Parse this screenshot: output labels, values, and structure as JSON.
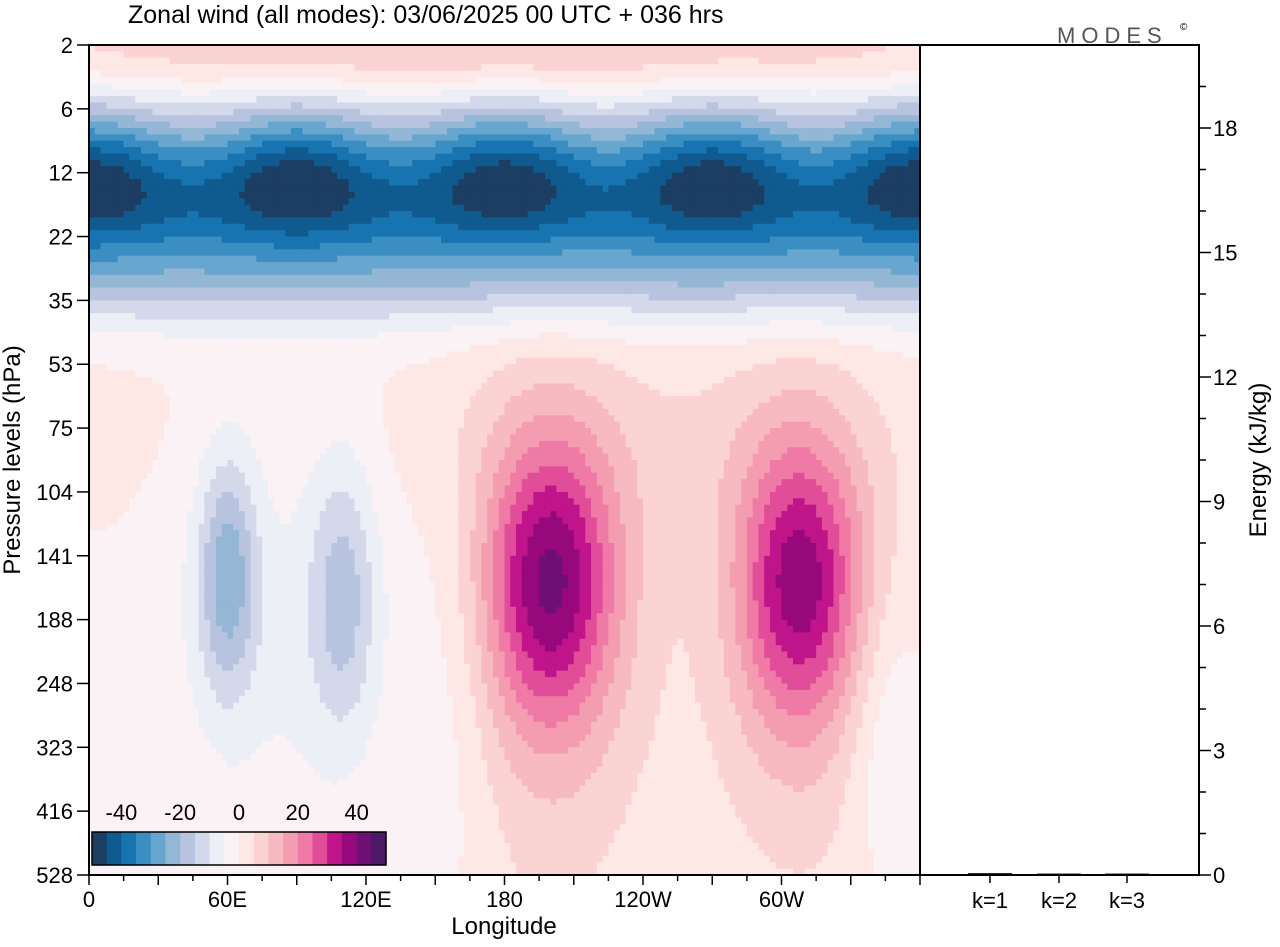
{
  "figure": {
    "title": "Zonal wind (all modes):  03/06/2025  00 UTC  + 036 hrs",
    "logo": "MODES",
    "logo_mark": "©"
  },
  "chart_data": [
    {
      "type": "heatmap",
      "name": "zonal-wind-cross-section",
      "xlabel": "Longitude",
      "ylabel": "Pressure levels (hPa)",
      "x_ticks": [
        "0",
        "60E",
        "120E",
        "180",
        "120W",
        "60W"
      ],
      "x_tick_degrees": [
        0,
        60,
        120,
        180,
        240,
        300
      ],
      "xlim": [
        0,
        360
      ],
      "y_ticks": [
        "2",
        "6",
        "12",
        "22",
        "35",
        "53",
        "75",
        "104",
        "141",
        "188",
        "248",
        "323",
        "416",
        "528"
      ],
      "y_scale": "level-index",
      "colorbar": {
        "tick_labels": [
          "-40",
          "-20",
          "0",
          "20",
          "40"
        ],
        "tick_values": [
          -40,
          -20,
          0,
          20,
          40
        ],
        "levels": [
          -45,
          -40,
          -35,
          -30,
          -25,
          -20,
          -15,
          -10,
          -5,
          0,
          5,
          10,
          15,
          20,
          25,
          30,
          35,
          40,
          45
        ],
        "colors": [
          "#1b3e62",
          "#0f5a8e",
          "#1874b1",
          "#3a8ec2",
          "#66a6cf",
          "#94b7d6",
          "#b7c3df",
          "#d3d9ea",
          "#eceff6",
          "#faf2f4",
          "#fde8e6",
          "#fbd3d3",
          "#f8bac1",
          "#f59db0",
          "#f07aa6",
          "#e14d98",
          "#c0148a",
          "#96087c",
          "#6e0f76",
          "#4c1a66"
        ],
        "placement": "bottom-left inset"
      },
      "features": [
        {
          "label": "stratospheric westward band",
          "lon_range": [
            0,
            360
          ],
          "level_range": [
            1,
            4
          ],
          "min_value": -38
        },
        {
          "label": "upper positive band",
          "lon_range": [
            20,
            320
          ],
          "level_range": [
            0,
            1
          ],
          "max_value": 12
        },
        {
          "label": "tropospheric westward lobes",
          "lon_range": [
            10,
            140
          ],
          "level_range": [
            6,
            12
          ],
          "min_value": -22
        },
        {
          "label": "positive jet core",
          "lon_center": 200,
          "level_center": 8.5,
          "max_value": 34
        },
        {
          "label": "positive jet core",
          "lon_center": 308,
          "level_center": 8.5,
          "max_value": 32
        },
        {
          "label": "weak westward lobe",
          "lon_center": 345,
          "level_center": 10.8,
          "min_value": -8
        }
      ]
    },
    {
      "type": "bar",
      "name": "energy-by-wavenumber",
      "ylabel": "Energy (kJ/kg)",
      "categories": [
        "k=1",
        "k=2",
        "k=3"
      ],
      "values": [
        0.02,
        0.01,
        0.01
      ],
      "ylim": [
        0,
        20
      ],
      "y_ticks": [
        "0",
        "3",
        "6",
        "9",
        "12",
        "15",
        "18"
      ],
      "y_tick_values": [
        0,
        3,
        6,
        9,
        12,
        15,
        18
      ],
      "y_minor_step": 1
    }
  ]
}
